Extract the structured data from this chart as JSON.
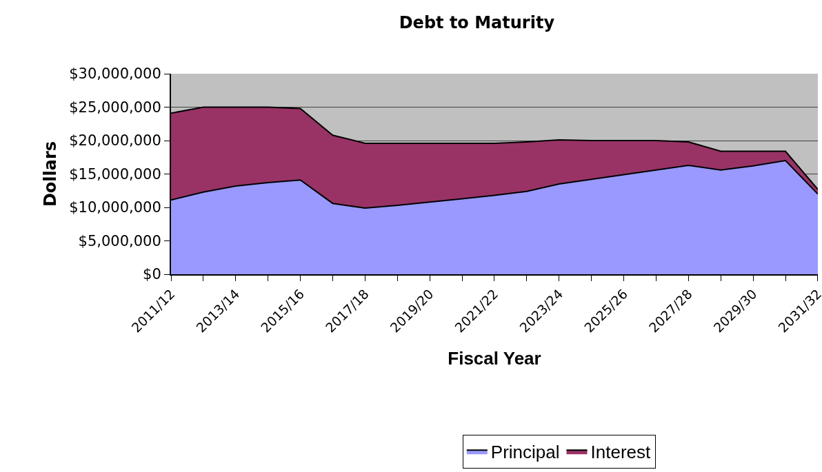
{
  "chart_data": {
    "type": "area",
    "title": "Debt to Maturity",
    "xlabel": "Fiscal Year",
    "ylabel": "Dollars",
    "categories": [
      "2011/12",
      null,
      "2013/14",
      null,
      "2015/16",
      null,
      "2017/18",
      null,
      "2019/20",
      null,
      "2021/22",
      null,
      "2023/24",
      null,
      "2025/26",
      null,
      "2027/28",
      null,
      "2029/30",
      null,
      "2031/32"
    ],
    "stacked": true,
    "series": [
      {
        "name": "Principal",
        "color": "#9999ff",
        "values": [
          11100000,
          12300000,
          13200000,
          13700000,
          14100000,
          10600000,
          9900000,
          10300000,
          10800000,
          11300000,
          11800000,
          12400000,
          13500000,
          14200000,
          14900000,
          15600000,
          16300000,
          15600000,
          16200000,
          17000000,
          12000000
        ]
      },
      {
        "name": "Interest",
        "color": "#993366",
        "values": [
          13000000,
          12700000,
          11800000,
          11300000,
          10700000,
          10200000,
          9700000,
          9300000,
          8800000,
          8300000,
          7800000,
          7400000,
          6600000,
          5800000,
          5100000,
          4400000,
          3500000,
          2800000,
          2200000,
          1400000,
          700000
        ]
      }
    ],
    "ylim": [
      0,
      30000000
    ],
    "yticks": [
      {
        "value": 0,
        "label": "$0"
      },
      {
        "value": 5000000,
        "label": "$5,000,000"
      },
      {
        "value": 10000000,
        "label": "$10,000,000"
      },
      {
        "value": 15000000,
        "label": "$15,000,000"
      },
      {
        "value": 20000000,
        "label": "$20,000,000"
      },
      {
        "value": 25000000,
        "label": "$25,000,000"
      },
      {
        "value": 30000000,
        "label": "$30,000,000"
      }
    ],
    "grid": "y",
    "legend": "bottom"
  }
}
